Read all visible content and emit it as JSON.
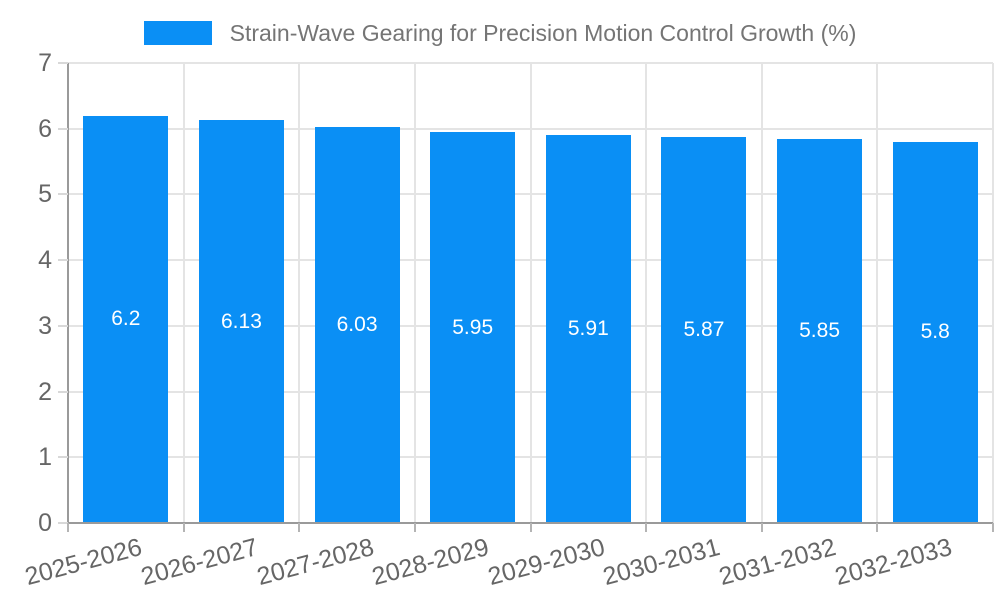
{
  "legend": {
    "label": "Strain-Wave Gearing for Precision Motion Control Growth (%)"
  },
  "chart_data": {
    "type": "bar",
    "title": "Strain-Wave Gearing for Precision Motion Control Growth (%)",
    "categories": [
      "2025-2026",
      "2026-2027",
      "2027-2028",
      "2028-2029",
      "2029-2030",
      "2030-2031",
      "2031-2032",
      "2032-2033"
    ],
    "values": [
      6.2,
      6.13,
      6.03,
      5.95,
      5.91,
      5.87,
      5.85,
      5.8
    ],
    "value_labels": [
      "6.2",
      "6.13",
      "6.03",
      "5.95",
      "5.91",
      "5.87",
      "5.85",
      "5.8"
    ],
    "xlabel": "",
    "ylabel": "",
    "ylim": [
      0,
      7
    ],
    "yticks": [
      0,
      1,
      2,
      3,
      4,
      5,
      6,
      7
    ],
    "grid": true,
    "legend_position": "top",
    "x_label_rotation_deg": -15,
    "colors": {
      "bar": "#0A8FF5",
      "bar_value_text": "#FFFFFF",
      "grid": "#E4E4E4",
      "axis": "#9A9A9A",
      "y_tick": "#D8D8D8",
      "x_tick": "#B4B4B4",
      "tick_label_text": "#666666",
      "legend_text": "#757575",
      "background": "#FFFFFF"
    }
  }
}
